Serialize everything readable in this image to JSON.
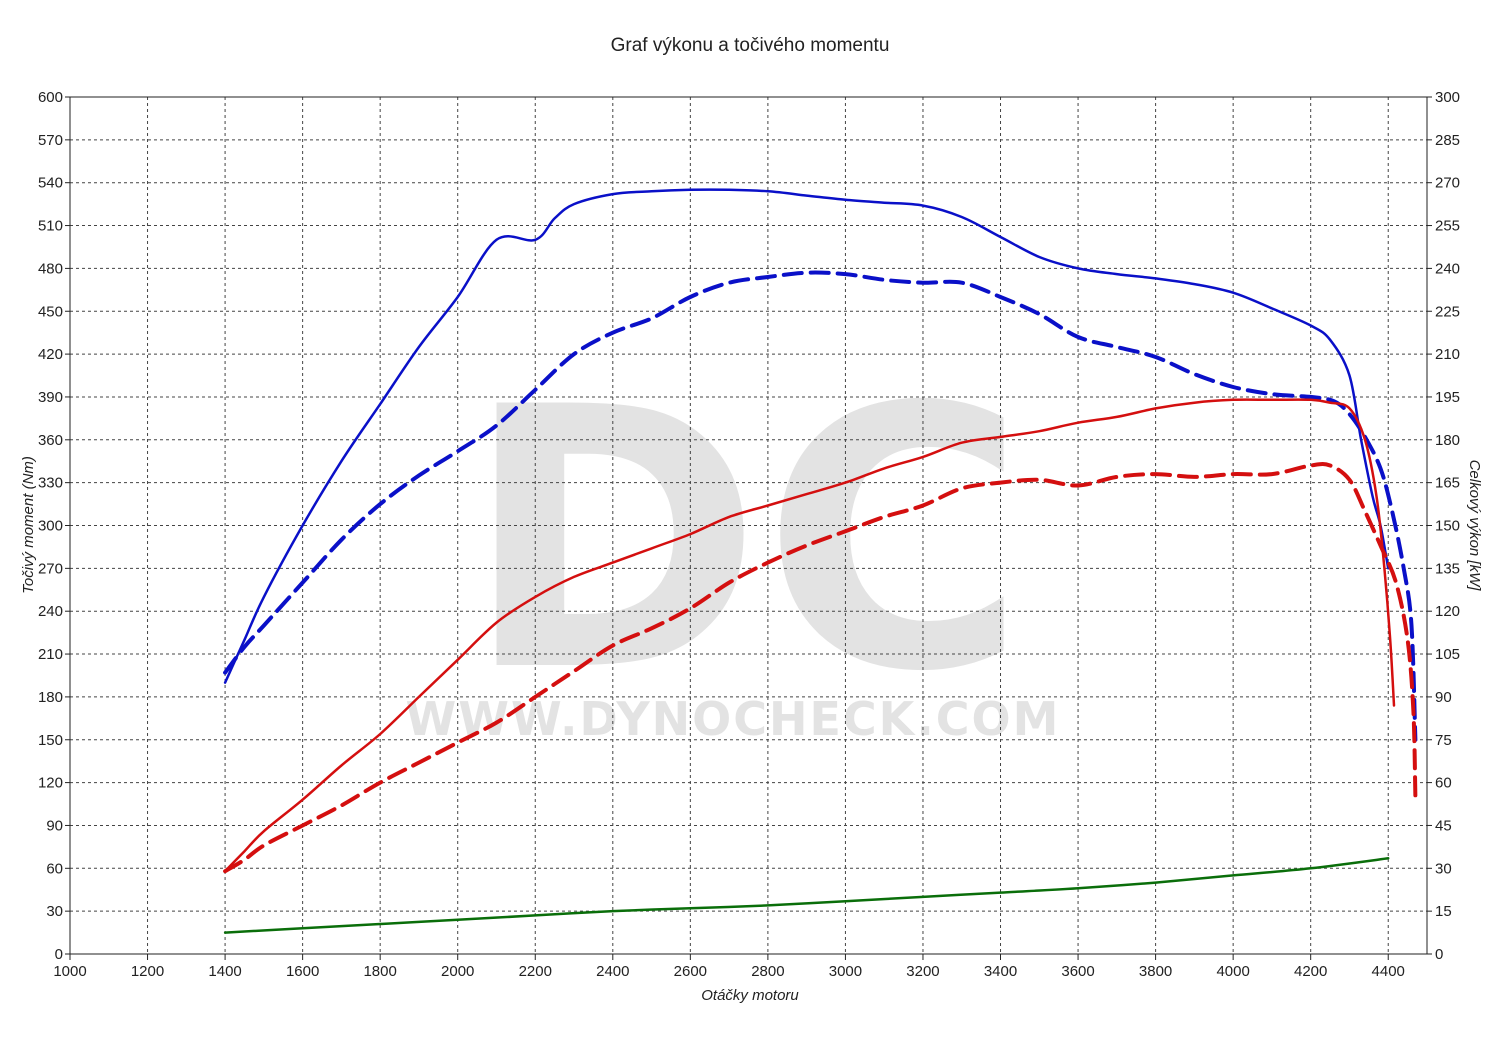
{
  "chart_data": {
    "type": "line",
    "title": "Graf výkonu a točivého momentu",
    "xlabel": "Otáčky motoru",
    "ylabel_left": "Točivý moment (Nm)",
    "ylabel_right": "Celkový výkon [kW]",
    "xlim": [
      1000,
      4500
    ],
    "ylim_left": [
      0,
      600
    ],
    "ylim_right": [
      0,
      300
    ],
    "x_ticks": [
      1000,
      1200,
      1400,
      1600,
      1800,
      2000,
      2200,
      2400,
      2600,
      2800,
      3000,
      3200,
      3400,
      3600,
      3800,
      4000,
      4200,
      4400
    ],
    "y_ticks_left": [
      0,
      30,
      60,
      90,
      120,
      150,
      180,
      210,
      240,
      270,
      300,
      330,
      360,
      390,
      420,
      450,
      480,
      510,
      540,
      570,
      600
    ],
    "y_ticks_right": [
      0,
      15,
      30,
      45,
      60,
      75,
      90,
      105,
      120,
      135,
      150,
      165,
      180,
      195,
      210,
      225,
      240,
      255,
      270,
      285,
      300
    ],
    "grid": true,
    "watermark": {
      "logo": "DC",
      "text": "WWW.DYNOCHECK.COM"
    },
    "colors": {
      "torque": "#0a10c8",
      "power": "#d40f0f",
      "losses": "#0a6e0a"
    },
    "series": [
      {
        "axis": "left",
        "color": "#0a10c8",
        "style": "solid",
        "x": [
          1400,
          1450,
          1500,
          1600,
          1700,
          1800,
          1900,
          2000,
          2100,
          2200,
          2250,
          2300,
          2400,
          2500,
          2600,
          2700,
          2800,
          2900,
          3000,
          3100,
          3200,
          3300,
          3400,
          3500,
          3600,
          3700,
          3800,
          3900,
          4000,
          4100,
          4200,
          4250,
          4300,
          4330,
          4360,
          4380,
          4400
        ],
        "y": [
          190,
          220,
          250,
          300,
          345,
          385,
          425,
          460,
          500,
          500,
          515,
          525,
          532,
          534,
          535,
          535,
          534,
          531,
          528,
          526,
          524,
          516,
          502,
          488,
          480,
          476,
          473,
          469,
          463,
          452,
          440,
          430,
          405,
          360,
          320,
          300,
          270
        ]
      },
      {
        "axis": "left",
        "color": "#0a10c8",
        "style": "dashed",
        "x": [
          1400,
          1450,
          1500,
          1600,
          1700,
          1800,
          1900,
          2000,
          2100,
          2200,
          2300,
          2400,
          2500,
          2600,
          2700,
          2800,
          2900,
          3000,
          3100,
          3200,
          3300,
          3400,
          3500,
          3600,
          3700,
          3800,
          3900,
          4000,
          4100,
          4200,
          4260,
          4300,
          4340,
          4380,
          4410,
          4440,
          4460,
          4470
        ],
        "y": [
          197,
          215,
          230,
          260,
          290,
          315,
          335,
          352,
          370,
          395,
          420,
          435,
          445,
          460,
          470,
          474,
          477,
          476,
          472,
          470,
          470,
          460,
          448,
          432,
          425,
          418,
          406,
          397,
          392,
          390,
          387,
          378,
          362,
          340,
          310,
          270,
          230,
          150
        ]
      },
      {
        "axis": "right",
        "color": "#d40f0f",
        "style": "solid",
        "x": [
          1400,
          1450,
          1500,
          1600,
          1700,
          1800,
          1900,
          2000,
          2100,
          2200,
          2300,
          2400,
          2500,
          2600,
          2700,
          2800,
          2900,
          3000,
          3100,
          3200,
          3300,
          3400,
          3500,
          3600,
          3700,
          3800,
          3900,
          4000,
          4100,
          4200,
          4250,
          4300,
          4340,
          4370,
          4390,
          4405,
          4415
        ],
        "y": [
          29,
          36,
          43,
          54,
          66,
          77,
          90,
          103,
          116,
          125,
          132,
          137,
          142,
          147,
          153,
          157,
          161,
          165,
          170,
          174,
          179,
          181,
          183,
          186,
          188,
          191,
          193,
          194,
          194,
          194,
          193,
          191,
          180,
          160,
          135,
          110,
          87
        ]
      },
      {
        "axis": "right",
        "color": "#d40f0f",
        "style": "dashed",
        "x": [
          1400,
          1450,
          1500,
          1600,
          1700,
          1800,
          1900,
          2000,
          2100,
          2200,
          2300,
          2400,
          2500,
          2600,
          2700,
          2800,
          2900,
          3000,
          3100,
          3200,
          3300,
          3400,
          3500,
          3600,
          3700,
          3800,
          3900,
          4000,
          4100,
          4200,
          4250,
          4300,
          4340,
          4380,
          4420,
          4450,
          4465,
          4470
        ],
        "y": [
          29,
          33,
          38,
          45,
          52,
          60,
          67,
          74,
          81,
          90,
          99,
          108,
          114,
          121,
          130,
          137,
          143,
          148,
          153,
          157,
          163,
          165,
          166,
          164,
          167,
          168,
          167,
          168,
          168,
          171,
          171,
          166,
          155,
          143,
          130,
          110,
          85,
          55
        ]
      },
      {
        "axis": "right",
        "color": "#0a6e0a",
        "style": "solid",
        "x": [
          1400,
          1600,
          1800,
          2000,
          2200,
          2400,
          2600,
          2800,
          3000,
          3200,
          3400,
          3600,
          3800,
          4000,
          4200,
          4400
        ],
        "y": [
          7.5,
          9,
          10.5,
          12,
          13.5,
          15,
          16,
          17,
          18.5,
          20,
          21.5,
          23,
          25,
          27.5,
          30,
          33.5
        ]
      }
    ]
  }
}
